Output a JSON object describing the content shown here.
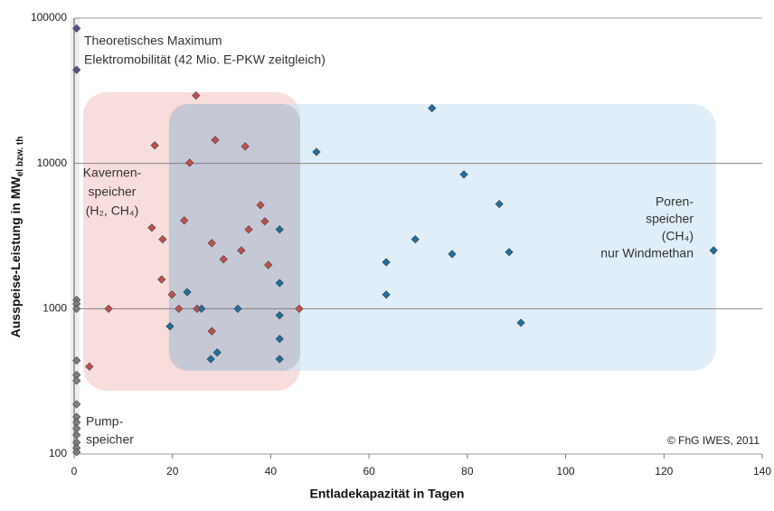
{
  "chart_data": {
    "type": "scatter",
    "scale_y": "log",
    "xlabel": "Entladekapazität in Tagen",
    "ylabel": "Ausspeise-Leistung in MW",
    "ylabel_sub": "el bzw. th",
    "xlim": [
      0,
      140
    ],
    "xticks": [
      0,
      20,
      40,
      60,
      80,
      100,
      120,
      140
    ],
    "ylim": [
      100,
      100000
    ],
    "yticks": [
      100,
      1000,
      10000,
      100000
    ],
    "grid": true,
    "series": [
      {
        "color": "#c0504d",
        "x": [
          24.8,
          16.4,
          28.7,
          34.8,
          23.5,
          22.4,
          37.9,
          38.8,
          15.8,
          35.5,
          18.0,
          28.0,
          34.0,
          30.4,
          39.5,
          17.8,
          19.9,
          21.3,
          25.0,
          7.0,
          45.8,
          28.0,
          3.1
        ],
        "values": [
          29300,
          13300,
          14500,
          13100,
          10100,
          4050,
          5170,
          3990,
          3610,
          3510,
          3000,
          2830,
          2520,
          2190,
          2000,
          1590,
          1250,
          1000,
          1000,
          1000,
          1000,
          700,
          400
        ]
      },
      {
        "color": "#1f6fa0",
        "x": [
          72.8,
          49.3,
          79.3,
          86.5,
          69.4,
          76.9,
          88.5,
          130.1,
          63.5,
          41.8,
          41.8,
          23.0,
          63.5,
          25.9,
          33.3,
          41.8,
          19.5,
          90.9,
          41.8,
          29.1,
          27.8,
          41.8
        ],
        "values": [
          24000,
          12000,
          8400,
          5250,
          3000,
          2380,
          2450,
          2520,
          2090,
          3510,
          1500,
          1300,
          1250,
          1000,
          1000,
          900,
          756,
          800,
          620,
          500,
          450,
          450
        ]
      },
      {
        "color": "#7f7f7f",
        "x": [
          0.5,
          0.5,
          0.5,
          0.5,
          0.5,
          0.5,
          0.5,
          0.5,
          0.5,
          0.5,
          0.5,
          0.5,
          0.5,
          0.5
        ],
        "values": [
          1150,
          1080,
          1000,
          440,
          350,
          320,
          220,
          180,
          165,
          150,
          135,
          120,
          110,
          103
        ]
      },
      {
        "color": "#5f4b8b",
        "x": [
          0.5,
          0.5
        ],
        "values": [
          85000,
          44000
        ]
      }
    ],
    "annotations": [
      {
        "color": "#5f4b8b",
        "lines": [
          "Theoretisches Maximum",
          "Elektromobilität (42 Mio. E-PKW zeitgleich)"
        ]
      },
      {
        "color": "#c0504d",
        "lines": [
          "Kavernen-",
          "speicher",
          "(H₂, CH₄)"
        ]
      },
      {
        "color": "#1f5f8f",
        "lines": [
          "Poren-",
          "speicher",
          "(CH₄)",
          "nur Windmethan"
        ]
      },
      {
        "color": "#404040",
        "lines": [
          "Pump-",
          "speicher"
        ]
      },
      {
        "color": "#222222",
        "lines": [
          "© FhG IWES, 2011"
        ]
      }
    ]
  }
}
